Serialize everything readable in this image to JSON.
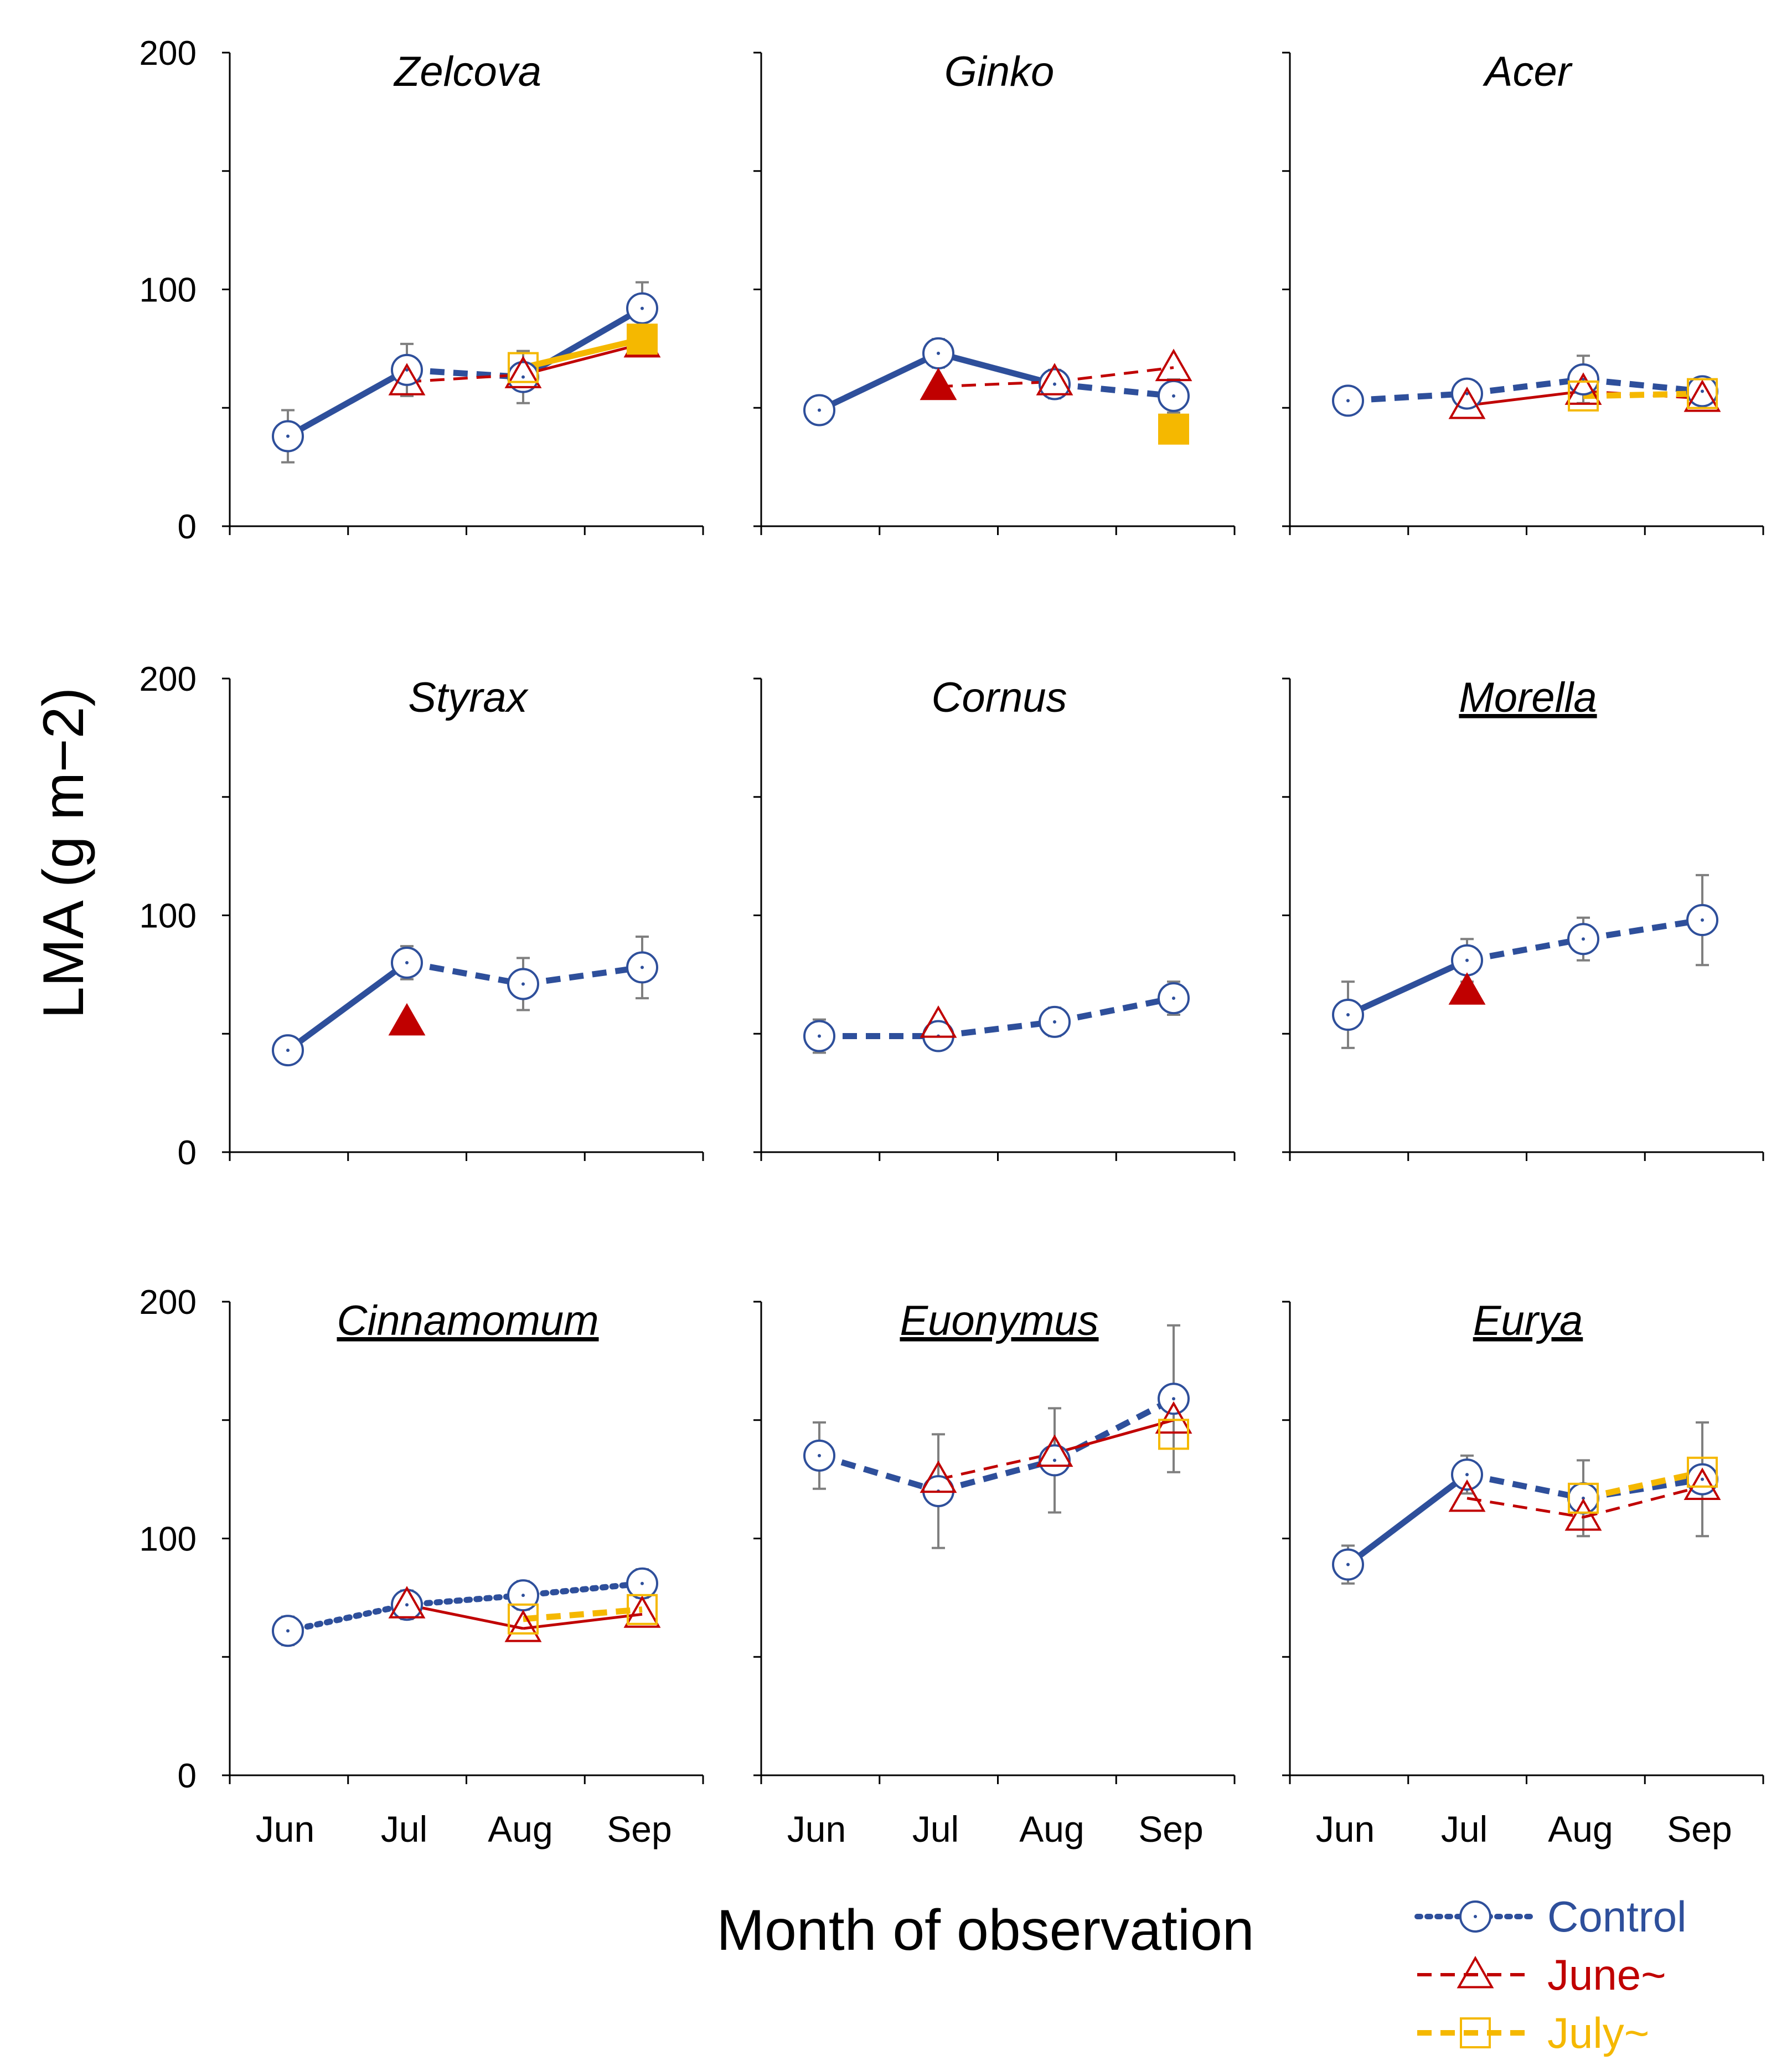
{
  "chart_data": {
    "type": "line",
    "ylabel": "LMA (g m−2)",
    "xlabel": "Month of observation",
    "ylim": [
      0,
      200
    ],
    "yticks": [
      "0",
      "100",
      "200"
    ],
    "categories": [
      "Jun",
      "Jul",
      "Aug",
      "Sep"
    ],
    "colors": {
      "control": "#2e4f9b",
      "june": "#c00000",
      "july": "#f5b800",
      "error": "#7f7f7f"
    },
    "legend": [
      {
        "key": "control",
        "label": "Control"
      },
      {
        "key": "june",
        "label": "June~"
      },
      {
        "key": "july",
        "label": "July~"
      }
    ],
    "panels": [
      {
        "title": "Zelcova",
        "underline": false,
        "control_dash": [
          "solid",
          "dashed",
          "solid"
        ],
        "control": {
          "values": [
            38,
            66,
            63,
            92
          ],
          "err": [
            11,
            11,
            11,
            11
          ]
        },
        "june": {
          "start": 1,
          "values": [
            null,
            61,
            64,
            77
          ],
          "dash": [
            "dashed",
            "solid"
          ],
          "filled": [
            false,
            false,
            true
          ]
        },
        "july": {
          "start": 2,
          "values": [
            null,
            null,
            67,
            79
          ],
          "dash": [
            "solid"
          ],
          "filled": [
            false,
            true
          ]
        }
      },
      {
        "title": "Ginko",
        "underline": false,
        "control_dash": [
          "solid",
          "solid",
          "dashed"
        ],
        "control": {
          "values": [
            49,
            73,
            60,
            55
          ],
          "err": [
            2,
            6,
            6,
            7
          ]
        },
        "june": {
          "start": 1,
          "values": [
            null,
            59,
            61,
            67
          ],
          "dash": [
            "dashed",
            "dashed"
          ],
          "filled": [
            true,
            false,
            false
          ]
        },
        "july": {
          "start": 3,
          "values": [
            null,
            null,
            null,
            41
          ],
          "dash": [],
          "filled": [
            true
          ]
        }
      },
      {
        "title": "Acer",
        "underline": false,
        "control_dash": [
          "dashed",
          "dashed",
          "dashed"
        ],
        "control": {
          "values": [
            53,
            56,
            62,
            57
          ],
          "err": [
            2,
            4,
            10,
            5
          ]
        },
        "june": {
          "start": 1,
          "values": [
            null,
            51,
            57,
            54
          ],
          "dash": [
            "solid",
            "dashed"
          ],
          "filled": [
            false,
            false,
            false
          ]
        },
        "july": {
          "start": 2,
          "values": [
            null,
            null,
            55,
            56
          ],
          "dash": [
            "dashed"
          ],
          "filled": [
            false,
            false
          ]
        }
      },
      {
        "title": "Styrax",
        "underline": false,
        "control_dash": [
          "solid",
          "dashed",
          "dashed"
        ],
        "control": {
          "values": [
            43,
            80,
            71,
            78
          ],
          "err": [
            4,
            7,
            11,
            13
          ]
        },
        "june": {
          "start": 1,
          "values": [
            null,
            55,
            null,
            null
          ],
          "dash": [],
          "filled": [
            true
          ]
        },
        "july": null
      },
      {
        "title": "Cornus",
        "underline": false,
        "control_dash": [
          "dashed",
          "dashed",
          "dashed"
        ],
        "control": {
          "values": [
            49,
            49,
            55,
            65
          ],
          "err": [
            7,
            4,
            6,
            7
          ]
        },
        "june": {
          "start": 1,
          "values": [
            null,
            54,
            null,
            null
          ],
          "dash": [],
          "filled": [
            false
          ]
        },
        "july": null
      },
      {
        "title": "Morella",
        "underline": true,
        "control_dash": [
          "solid",
          "dashed",
          "dashed"
        ],
        "control": {
          "values": [
            58,
            81,
            90,
            98
          ],
          "err": [
            14,
            9,
            9,
            19
          ]
        },
        "june": {
          "start": 1,
          "values": [
            null,
            68,
            null,
            null
          ],
          "dash": [],
          "filled": [
            true
          ]
        },
        "july": null
      },
      {
        "title": "Cinnamomum",
        "underline": true,
        "control_dash": [
          "dotted",
          "dotted",
          "dotted"
        ],
        "control": {
          "values": [
            61,
            72,
            76,
            81
          ],
          "err": [
            6,
            6,
            6,
            6
          ]
        },
        "june": {
          "start": 1,
          "values": [
            null,
            72,
            62,
            68
          ],
          "dash": [
            "solid",
            "solid"
          ],
          "filled": [
            false,
            false,
            false
          ]
        },
        "july": {
          "start": 2,
          "values": [
            null,
            null,
            66,
            70
          ],
          "dash": [
            "dashed"
          ],
          "filled": [
            false,
            false
          ]
        }
      },
      {
        "title": "Euonymus",
        "underline": true,
        "control_dash": [
          "dashed",
          "dashed",
          "dashed"
        ],
        "control": {
          "values": [
            135,
            120,
            133,
            159
          ],
          "err": [
            14,
            24,
            22,
            31
          ]
        },
        "june": {
          "start": 1,
          "values": [
            null,
            125,
            136,
            150
          ],
          "dash": [
            "dashed",
            "solid"
          ],
          "filled": [
            false,
            false,
            false
          ]
        },
        "july": {
          "start": 3,
          "values": [
            null,
            null,
            null,
            144
          ],
          "dash": [],
          "filled": [
            false
          ]
        }
      },
      {
        "title": "Eurya",
        "underline": true,
        "control_dash": [
          "solid",
          "dashed",
          "dashed"
        ],
        "control": {
          "values": [
            89,
            127,
            117,
            125
          ],
          "err": [
            8,
            8,
            16,
            24
          ]
        },
        "june": {
          "start": 1,
          "values": [
            null,
            117,
            109,
            122
          ],
          "dash": [
            "dashed",
            "dashed"
          ],
          "filled": [
            false,
            false,
            false
          ]
        },
        "july": {
          "start": 2,
          "values": [
            null,
            null,
            117,
            128
          ],
          "dash": [
            "dashed"
          ],
          "filled": [
            false,
            false
          ]
        }
      }
    ]
  }
}
